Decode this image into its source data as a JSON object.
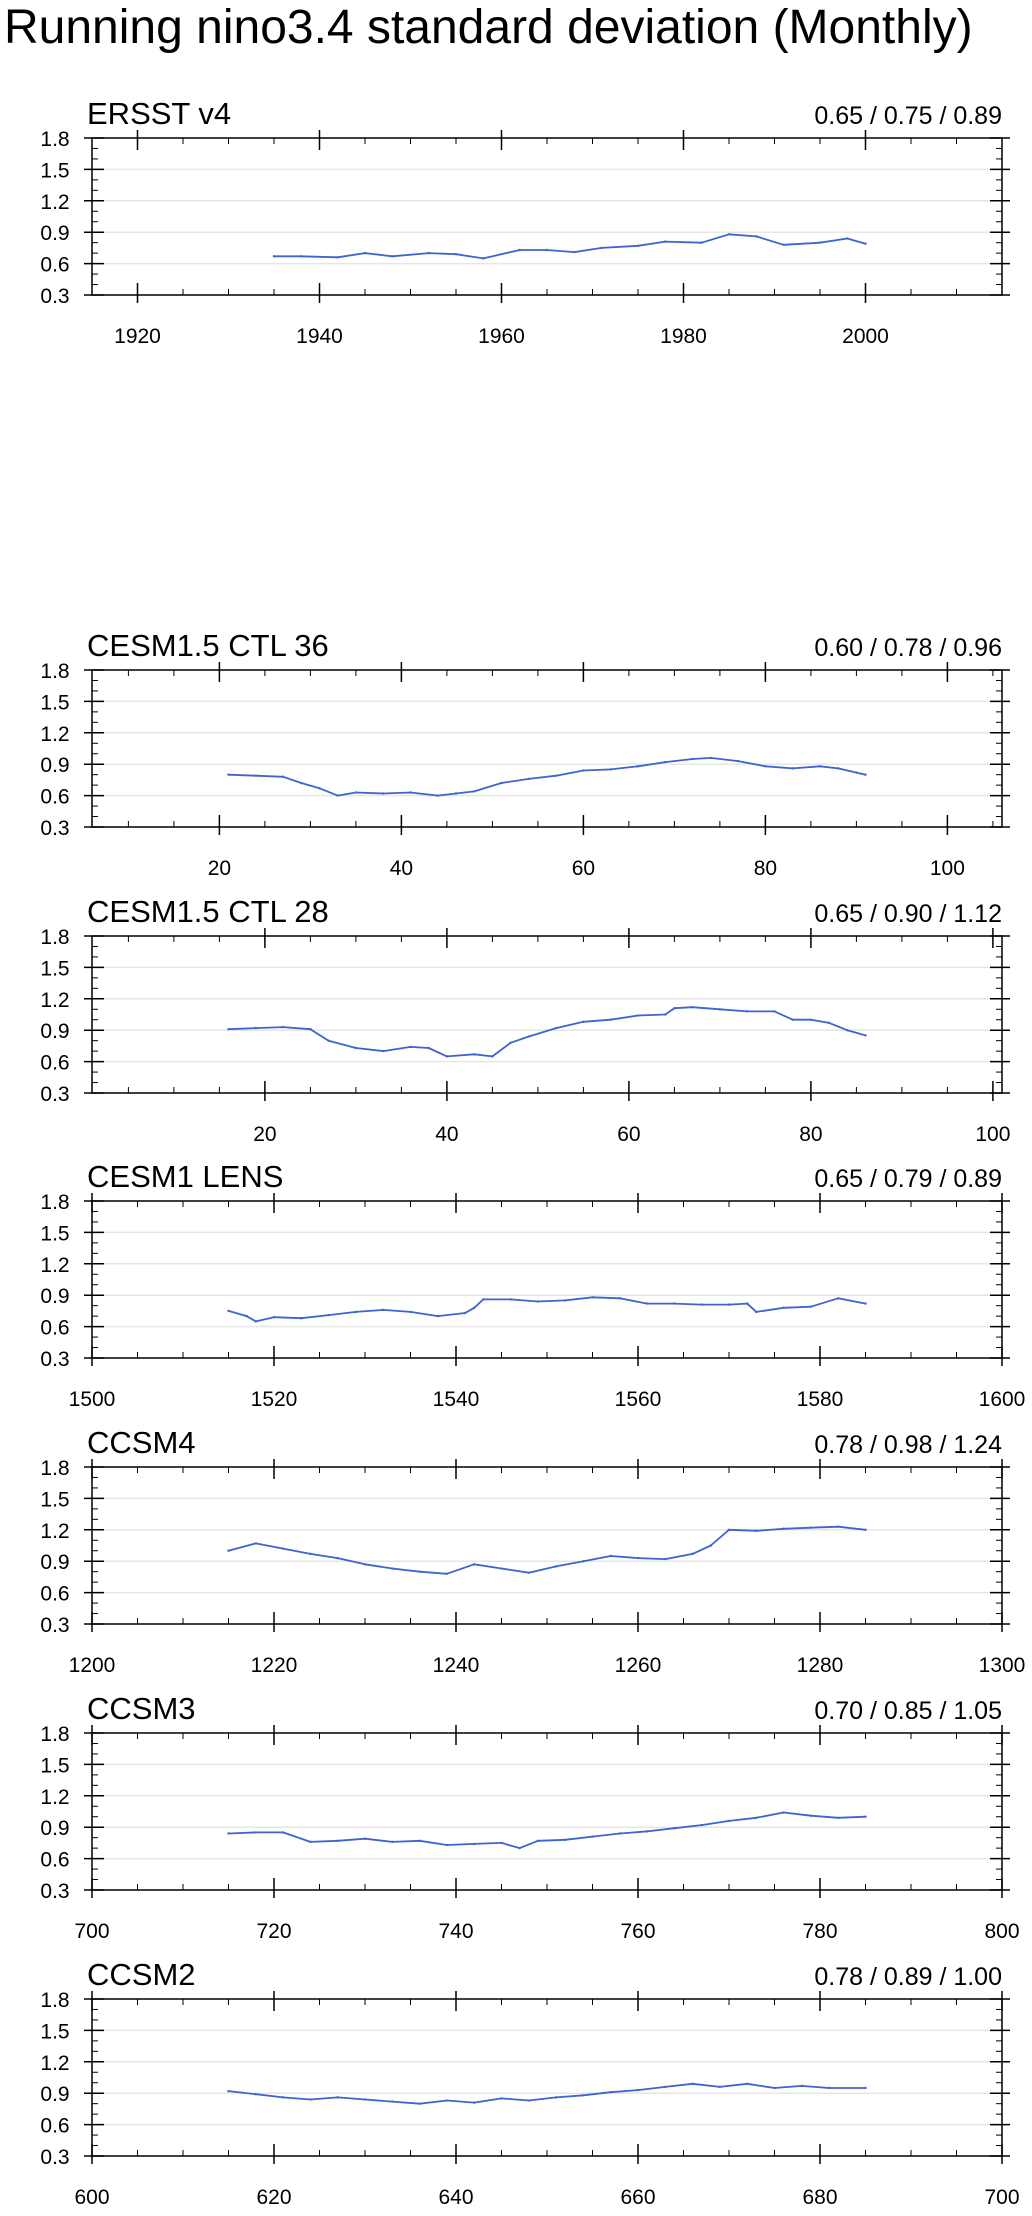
{
  "title": "Running nino3.4 standard deviation (Monthly)",
  "colors": {
    "line": "#3c64d2",
    "axis": "#000000",
    "grid": "#e6e6e6"
  },
  "chart_data": [
    {
      "type": "line",
      "title": "ERSST v4",
      "stats": "0.65 / 0.75 / 0.89",
      "xlim": [
        1915,
        2015
      ],
      "ylim": [
        0.3,
        1.8
      ],
      "xticks": [
        "1920",
        "1940",
        "1960",
        "1980",
        "2000"
      ],
      "yticks": [
        "0.3",
        "0.6",
        "0.9",
        "1.2",
        "1.5",
        "1.8"
      ],
      "x": [
        1935,
        1938,
        1942,
        1945,
        1948,
        1952,
        1955,
        1958,
        1962,
        1965,
        1968,
        1971,
        1975,
        1978,
        1982,
        1985,
        1988,
        1991,
        1995,
        1998,
        2000
      ],
      "y": [
        0.67,
        0.67,
        0.66,
        0.7,
        0.67,
        0.7,
        0.69,
        0.65,
        0.73,
        0.73,
        0.71,
        0.75,
        0.77,
        0.81,
        0.8,
        0.88,
        0.86,
        0.78,
        0.8,
        0.84,
        0.79
      ]
    },
    {
      "type": "line",
      "title": "CESM1.5 CTL 36",
      "stats": "0.60 / 0.78 / 0.96",
      "xlim": [
        6,
        106
      ],
      "ylim": [
        0.3,
        1.8
      ],
      "xticks": [
        "20",
        "40",
        "60",
        "80",
        "100"
      ],
      "yticks": [
        "0.3",
        "0.6",
        "0.9",
        "1.2",
        "1.5",
        "1.8"
      ],
      "x": [
        21,
        24,
        27,
        29,
        31,
        33,
        35,
        38,
        41,
        44,
        46,
        48,
        51,
        54,
        57,
        60,
        63,
        66,
        69,
        72,
        74,
        77,
        80,
        83,
        86,
        88,
        90,
        91
      ],
      "y": [
        0.8,
        0.79,
        0.78,
        0.72,
        0.67,
        0.6,
        0.63,
        0.62,
        0.63,
        0.6,
        0.62,
        0.64,
        0.72,
        0.76,
        0.79,
        0.84,
        0.85,
        0.88,
        0.92,
        0.95,
        0.96,
        0.93,
        0.88,
        0.86,
        0.88,
        0.86,
        0.82,
        0.8
      ]
    },
    {
      "type": "line",
      "title": "CESM1.5 CTL 28",
      "stats": "0.65 / 0.90 / 1.12",
      "xlim": [
        1,
        101
      ],
      "ylim": [
        0.3,
        1.8
      ],
      "xticks": [
        "20",
        "40",
        "60",
        "80",
        "100"
      ],
      "yticks": [
        "0.3",
        "0.6",
        "0.9",
        "1.2",
        "1.5",
        "1.8"
      ],
      "x": [
        16,
        19,
        22,
        25,
        27,
        30,
        33,
        36,
        38,
        40,
        43,
        45,
        47,
        49,
        52,
        55,
        58,
        61,
        64,
        65,
        67,
        70,
        73,
        76,
        78,
        80,
        82,
        84,
        86
      ],
      "y": [
        0.91,
        0.92,
        0.93,
        0.91,
        0.8,
        0.73,
        0.7,
        0.74,
        0.73,
        0.65,
        0.67,
        0.65,
        0.78,
        0.84,
        0.92,
        0.98,
        1.0,
        1.04,
        1.05,
        1.11,
        1.12,
        1.1,
        1.08,
        1.08,
        1.0,
        1.0,
        0.97,
        0.9,
        0.85
      ]
    },
    {
      "type": "line",
      "title": "CESM1 LENS",
      "stats": "0.65 / 0.79 / 0.89",
      "xlim": [
        1500,
        1600
      ],
      "ylim": [
        0.3,
        1.8
      ],
      "xticks": [
        "1500",
        "1520",
        "1540",
        "1560",
        "1580",
        "1600"
      ],
      "yticks": [
        "0.3",
        "0.6",
        "0.9",
        "1.2",
        "1.5",
        "1.8"
      ],
      "x": [
        1515,
        1517,
        1518,
        1520,
        1523,
        1526,
        1529,
        1532,
        1535,
        1538,
        1541,
        1542,
        1543,
        1546,
        1549,
        1552,
        1555,
        1558,
        1561,
        1564,
        1567,
        1570,
        1572,
        1573,
        1576,
        1579,
        1582,
        1585
      ],
      "y": [
        0.75,
        0.7,
        0.65,
        0.69,
        0.68,
        0.71,
        0.74,
        0.76,
        0.74,
        0.7,
        0.73,
        0.78,
        0.86,
        0.86,
        0.84,
        0.85,
        0.88,
        0.87,
        0.82,
        0.82,
        0.81,
        0.81,
        0.82,
        0.74,
        0.78,
        0.79,
        0.87,
        0.82
      ]
    },
    {
      "type": "line",
      "title": "CCSM4",
      "stats": "0.78 / 0.98 / 1.24",
      "xlim": [
        1200,
        1300
      ],
      "ylim": [
        0.3,
        1.8
      ],
      "xticks": [
        "1200",
        "1220",
        "1240",
        "1260",
        "1280",
        "1300"
      ],
      "yticks": [
        "0.3",
        "0.6",
        "0.9",
        "1.2",
        "1.5",
        "1.8"
      ],
      "x": [
        1215,
        1218,
        1221,
        1224,
        1227,
        1230,
        1233,
        1236,
        1239,
        1242,
        1245,
        1248,
        1251,
        1254,
        1257,
        1260,
        1263,
        1266,
        1268,
        1270,
        1273,
        1276,
        1279,
        1282,
        1285
      ],
      "y": [
        1.0,
        1.07,
        1.02,
        0.97,
        0.93,
        0.87,
        0.83,
        0.8,
        0.78,
        0.87,
        0.83,
        0.79,
        0.85,
        0.9,
        0.95,
        0.93,
        0.92,
        0.97,
        1.05,
        1.2,
        1.19,
        1.21,
        1.22,
        1.23,
        1.2
      ]
    },
    {
      "type": "line",
      "title": "CCSM3",
      "stats": "0.70 / 0.85 / 1.05",
      "xlim": [
        700,
        800
      ],
      "ylim": [
        0.3,
        1.8
      ],
      "xticks": [
        "700",
        "720",
        "740",
        "760",
        "780",
        "800"
      ],
      "yticks": [
        "0.3",
        "0.6",
        "0.9",
        "1.2",
        "1.5",
        "1.8"
      ],
      "x": [
        715,
        718,
        721,
        724,
        727,
        730,
        733,
        736,
        739,
        742,
        745,
        747,
        749,
        752,
        755,
        758,
        761,
        764,
        767,
        770,
        773,
        776,
        779,
        782,
        785
      ],
      "y": [
        0.84,
        0.85,
        0.85,
        0.76,
        0.77,
        0.79,
        0.76,
        0.77,
        0.73,
        0.74,
        0.75,
        0.7,
        0.77,
        0.78,
        0.81,
        0.84,
        0.86,
        0.89,
        0.92,
        0.96,
        0.99,
        1.04,
        1.01,
        0.99,
        1.0
      ]
    },
    {
      "type": "line",
      "title": "CCSM2",
      "stats": "0.78 / 0.89 / 1.00",
      "xlim": [
        600,
        700
      ],
      "ylim": [
        0.3,
        1.8
      ],
      "xticks": [
        "600",
        "620",
        "640",
        "660",
        "680",
        "700"
      ],
      "yticks": [
        "0.3",
        "0.6",
        "0.9",
        "1.2",
        "1.5",
        "1.8"
      ],
      "x": [
        615,
        618,
        621,
        624,
        627,
        630,
        633,
        636,
        639,
        642,
        645,
        648,
        651,
        654,
        657,
        660,
        663,
        666,
        669,
        672,
        675,
        678,
        681,
        685
      ],
      "y": [
        0.92,
        0.89,
        0.86,
        0.84,
        0.86,
        0.84,
        0.82,
        0.8,
        0.83,
        0.81,
        0.85,
        0.83,
        0.86,
        0.88,
        0.91,
        0.93,
        0.96,
        0.99,
        0.96,
        0.99,
        0.95,
        0.97,
        0.95,
        0.95
      ]
    }
  ]
}
